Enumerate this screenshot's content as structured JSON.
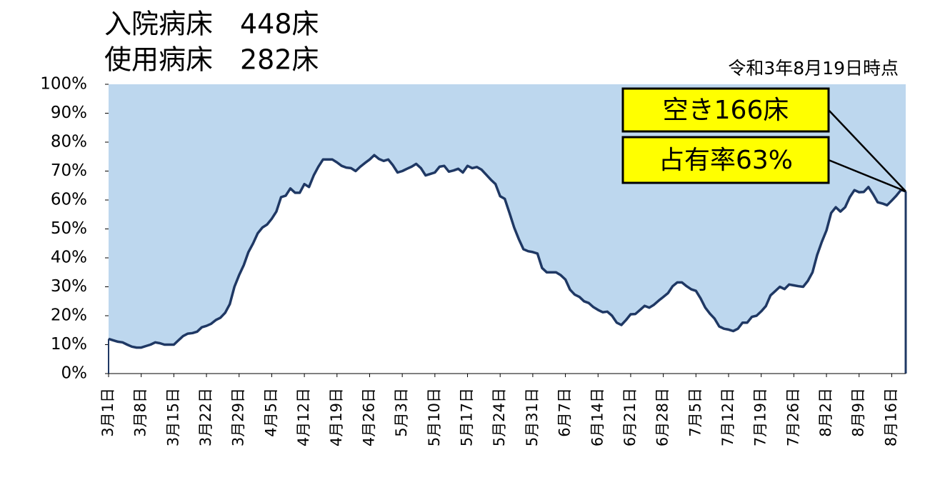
{
  "chart_data": {
    "type": "area",
    "title": "入院病床　448床",
    "subtitle": "使用病床　282床",
    "date_note": "令和3年8月19日時点",
    "annotations": [
      "空き166床",
      "占有率63%"
    ],
    "categories": [
      "3月1日",
      null,
      null,
      null,
      null,
      null,
      null,
      "3月8日",
      null,
      null,
      null,
      null,
      null,
      null,
      "3月15日",
      null,
      null,
      null,
      null,
      null,
      null,
      "3月22日",
      null,
      null,
      null,
      null,
      null,
      null,
      "3月29日",
      null,
      null,
      null,
      null,
      null,
      null,
      "4月5日",
      null,
      null,
      null,
      null,
      null,
      null,
      "4月12日",
      null,
      null,
      null,
      null,
      null,
      null,
      "4月19日",
      null,
      null,
      null,
      null,
      null,
      null,
      "4月26日",
      null,
      null,
      null,
      null,
      null,
      null,
      "5月3日",
      null,
      null,
      null,
      null,
      null,
      null,
      "5月10日",
      null,
      null,
      null,
      null,
      null,
      null,
      "5月17日",
      null,
      null,
      null,
      null,
      null,
      null,
      "5月24日",
      null,
      null,
      null,
      null,
      null,
      null,
      "5月31日",
      null,
      null,
      null,
      null,
      null,
      null,
      "6月7日",
      null,
      null,
      null,
      null,
      null,
      null,
      "6月14日",
      null,
      null,
      null,
      null,
      null,
      null,
      "6月21日",
      null,
      null,
      null,
      null,
      null,
      null,
      "6月28日",
      null,
      null,
      null,
      null,
      null,
      null,
      "7月5日",
      null,
      null,
      null,
      null,
      null,
      null,
      "7月12日",
      null,
      null,
      null,
      null,
      null,
      null,
      "7月19日",
      null,
      null,
      null,
      null,
      null,
      null,
      "7月26日",
      null,
      null,
      null,
      null,
      null,
      null,
      "8月2日",
      null,
      null,
      null,
      null,
      null,
      null,
      "8月9日",
      null,
      null,
      null,
      null,
      null,
      null,
      "8月16日",
      null,
      null,
      null
    ],
    "values": [
      12,
      11.5,
      11,
      10.8,
      10,
      9.3,
      9,
      9,
      9.5,
      10,
      10.8,
      10.5,
      10,
      10,
      10,
      11.5,
      13,
      13.8,
      14,
      14.5,
      16,
      16.5,
      17.2,
      18.5,
      19.3,
      21,
      24,
      30,
      34,
      37.5,
      42,
      45,
      48.5,
      50.5,
      51.5,
      53.5,
      56,
      61,
      61.5,
      64,
      62.5,
      62.5,
      65.5,
      64.5,
      68.5,
      71.5,
      74,
      74,
      74,
      73,
      71.8,
      71.2,
      71,
      70,
      71.5,
      72.8,
      74,
      75.5,
      74.2,
      73.5,
      74,
      72,
      69.5,
      70,
      70.8,
      71.5,
      72.5,
      71,
      68.5,
      69,
      69.5,
      71.5,
      71.8,
      69.8,
      70.2,
      70.8,
      69.5,
      71.8,
      71,
      71.4,
      70.5,
      68.8,
      67,
      65.5,
      61.3,
      60.4,
      55.5,
      50.5,
      46.5,
      43,
      42.3,
      42,
      41.5,
      36.5,
      35,
      35,
      35,
      34,
      32.5,
      29,
      27.3,
      26.5,
      25,
      24.4,
      23,
      22,
      21.2,
      21.4,
      20,
      17.6,
      16.8,
      18.5,
      20.5,
      20.6,
      22,
      23.4,
      22.8,
      23.8,
      25.2,
      26.5,
      27.8,
      30.2,
      31.5,
      31.5,
      30.2,
      29.1,
      28.6,
      26,
      22.8,
      20.7,
      19,
      16.3,
      15.5,
      15.2,
      14.7,
      15.5,
      17.6,
      17.6,
      19.6,
      20,
      21.5,
      23.3,
      27,
      28.5,
      30,
      29.2,
      30.8,
      30.5,
      30.2,
      30,
      32,
      35,
      41,
      45.5,
      49.5,
      55.5,
      57.5,
      56,
      57.5,
      61,
      63.4,
      62.7,
      62.8,
      64.5,
      62,
      59.2,
      58.8,
      58.2,
      59.8,
      61.5,
      63.5,
      63
    ],
    "line_color": "#1f3864",
    "background_color": "#bdd7ee",
    "ylim": [
      0,
      100
    ],
    "yticks": [
      {
        "value": 0,
        "label": "0%"
      },
      {
        "value": 10,
        "label": "10%"
      },
      {
        "value": 20,
        "label": "20%"
      },
      {
        "value": 30,
        "label": "30%"
      },
      {
        "value": 40,
        "label": "40%"
      },
      {
        "value": 50,
        "label": "50%"
      },
      {
        "value": 60,
        "label": "60%"
      },
      {
        "value": 70,
        "label": "70%"
      },
      {
        "value": 80,
        "label": "80%"
      },
      {
        "value": 90,
        "label": "90%"
      },
      {
        "value": 100,
        "label": "100%"
      }
    ]
  }
}
